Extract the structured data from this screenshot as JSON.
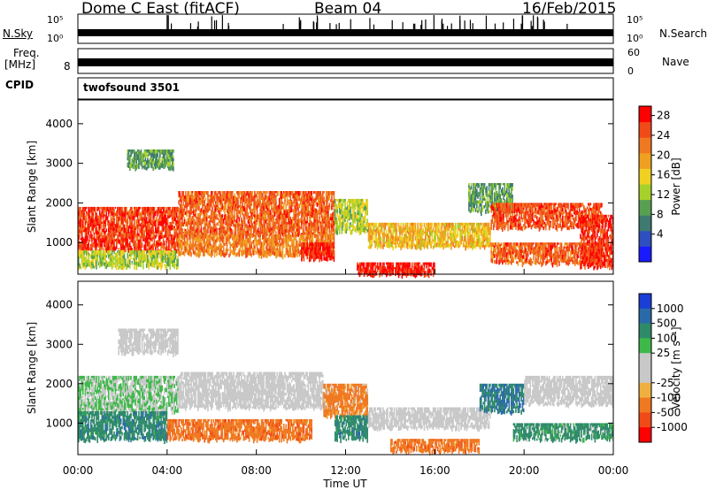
{
  "header": {
    "station": "Dome C East (fitACF)",
    "beam": "Beam 04",
    "date": "16/Feb/2015"
  },
  "strip_top": {
    "left_label": "N.Sky",
    "left_ticks": [
      "10^5",
      "10^0"
    ],
    "right_label": "N.Search",
    "right_ticks": [
      "10^5",
      "10^0"
    ]
  },
  "strip_mid": {
    "left_label_1": "Freq.",
    "left_label_2": "[MHz]",
    "left_ticks": [
      "8"
    ],
    "right_label": "Nave",
    "right_ticks": [
      "60",
      "0"
    ]
  },
  "cpid": {
    "label": "CPID",
    "value": "twofsound 3501"
  },
  "chart_data": [
    {
      "type": "heatmap",
      "panel": "power",
      "ylabel": "Slant Range [km]",
      "xlabel": "",
      "ylim": [
        200,
        4600
      ],
      "yticks": [
        "1000",
        "2000",
        "3000",
        "4000"
      ],
      "colorbar_label": "Power [dB]",
      "colorbar_ticks": [
        "4",
        "8",
        "12",
        "16",
        "20",
        "24",
        "28"
      ],
      "colorbar_colors": [
        "#1a1aff",
        "#2e4fbf",
        "#3d7a70",
        "#57a052",
        "#a6d12a",
        "#f0d020",
        "#f0a020",
        "#f07820",
        "#f04a18",
        "#ff0000"
      ],
      "regions": [
        {
          "t0": 0.0,
          "t1": 4.5,
          "r0": 800,
          "r1": 1900,
          "level": 26
        },
        {
          "t0": 0.0,
          "t1": 4.5,
          "r0": 400,
          "r1": 800,
          "level": 14
        },
        {
          "t0": 2.2,
          "t1": 4.3,
          "r0": 2900,
          "r1": 3350,
          "level": 10
        },
        {
          "t0": 4.5,
          "t1": 11.5,
          "r0": 1200,
          "r1": 2300,
          "level": 24
        },
        {
          "t0": 4.5,
          "t1": 11.5,
          "r0": 700,
          "r1": 1200,
          "level": 22
        },
        {
          "t0": 10.0,
          "t1": 11.5,
          "r0": 600,
          "r1": 1000,
          "level": 28
        },
        {
          "t0": 11.5,
          "t1": 13.0,
          "r0": 1300,
          "r1": 2100,
          "level": 14
        },
        {
          "t0": 12.5,
          "t1": 16.0,
          "r0": 200,
          "r1": 500,
          "level": 28
        },
        {
          "t0": 13.0,
          "t1": 18.5,
          "r0": 900,
          "r1": 1500,
          "level": 18
        },
        {
          "t0": 17.5,
          "t1": 19.5,
          "r0": 1800,
          "r1": 2500,
          "level": 10
        },
        {
          "t0": 18.5,
          "t1": 23.5,
          "r0": 1400,
          "r1": 2000,
          "level": 25
        },
        {
          "t0": 18.5,
          "t1": 23.5,
          "r0": 500,
          "r1": 1000,
          "level": 24
        },
        {
          "t0": 22.5,
          "t1": 24.0,
          "r0": 400,
          "r1": 1700,
          "level": 27
        }
      ]
    },
    {
      "type": "heatmap",
      "panel": "velocity",
      "ylabel": "Slant Range [km]",
      "xlabel": "Time UT",
      "ylim": [
        200,
        4600
      ],
      "xlim": [
        0,
        24
      ],
      "xticks": [
        "00:00",
        "04:00",
        "08:00",
        "12:00",
        "16:00",
        "20:00",
        "00:00"
      ],
      "yticks": [
        "1000",
        "2000",
        "3000",
        "4000"
      ],
      "colorbar_label": "Velocity [m s⁻¹]",
      "colorbar_ticks": [
        "1000",
        "500",
        "100",
        "25",
        "-25",
        "-100",
        "-500",
        "-1000"
      ],
      "colorbar_colors": [
        "#1a3fd6",
        "#2a6aa8",
        "#2f8a6a",
        "#3fb84a",
        "#c8c8c8",
        "#c8c8c8",
        "#f0b040",
        "#f07820",
        "#f04a18",
        "#ff0000"
      ],
      "regions": [
        {
          "t0": 0.0,
          "t1": 4.5,
          "r0": 1300,
          "r1": 2200,
          "level": 25
        },
        {
          "t0": 0.0,
          "t1": 4.0,
          "r0": 600,
          "r1": 1300,
          "level": 200
        },
        {
          "t0": 1.8,
          "t1": 4.5,
          "r0": 2800,
          "r1": 3400,
          "level": 10
        },
        {
          "t0": 4.5,
          "t1": 11.0,
          "r0": 1400,
          "r1": 2300,
          "level": 0
        },
        {
          "t0": 4.0,
          "t1": 10.5,
          "r0": 600,
          "r1": 1100,
          "level": -200
        },
        {
          "t0": 11.0,
          "t1": 13.0,
          "r0": 1200,
          "r1": 2000,
          "level": -150
        },
        {
          "t0": 11.5,
          "t1": 13.0,
          "r0": 600,
          "r1": 1200,
          "level": 200
        },
        {
          "t0": 13.0,
          "t1": 18.5,
          "r0": 900,
          "r1": 1400,
          "level": 0
        },
        {
          "t0": 14.0,
          "t1": 18.0,
          "r0": 300,
          "r1": 600,
          "level": -200
        },
        {
          "t0": 18.0,
          "t1": 20.0,
          "r0": 1300,
          "r1": 2000,
          "level": 300
        },
        {
          "t0": 20.0,
          "t1": 24.0,
          "r0": 1500,
          "r1": 2200,
          "level": 0
        },
        {
          "t0": 19.5,
          "t1": 24.0,
          "r0": 600,
          "r1": 1000,
          "level": 150
        }
      ]
    }
  ]
}
